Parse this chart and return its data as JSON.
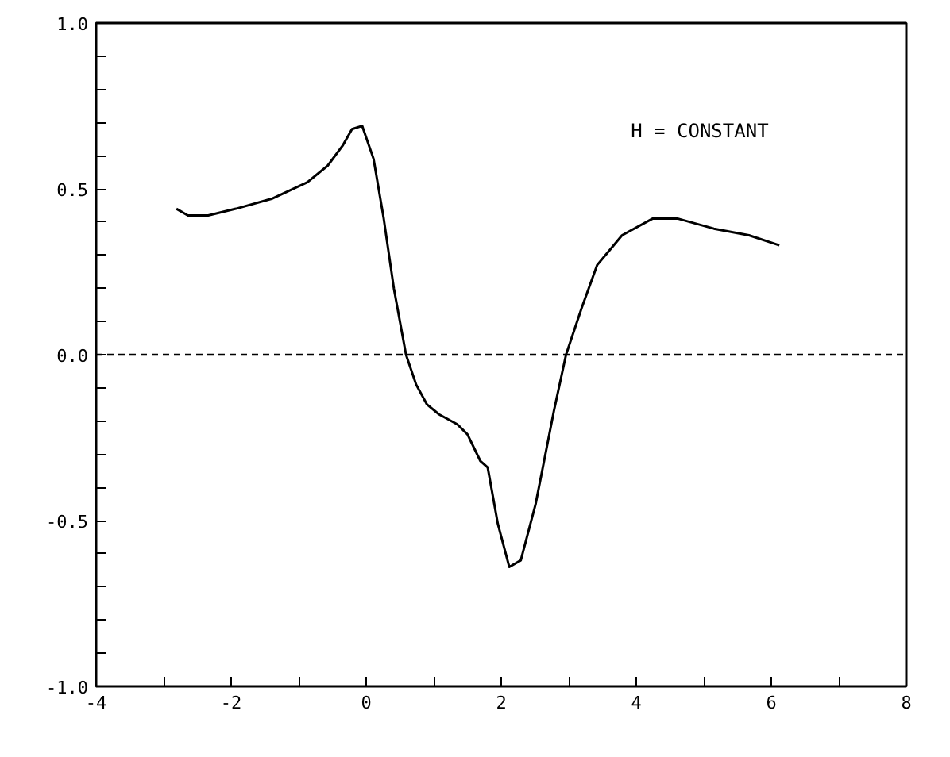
{
  "chart_data": {
    "type": "line",
    "x": [
      -2.81,
      -2.64,
      -2.34,
      -1.93,
      -1.4,
      -0.87,
      -0.57,
      -0.35,
      -0.21,
      -0.06,
      0.11,
      0.26,
      0.41,
      0.59,
      0.74,
      0.9,
      1.08,
      1.35,
      1.5,
      1.69,
      1.8,
      1.95,
      2.12,
      2.29,
      2.51,
      2.78,
      2.96,
      3.19,
      3.42,
      3.79,
      4.24,
      4.62,
      5.15,
      5.67,
      6.12
    ],
    "series": [
      {
        "color": "#000000",
        "values": [
          0.44,
          0.42,
          0.42,
          0.44,
          0.47,
          0.52,
          0.57,
          0.63,
          0.68,
          0.69,
          0.59,
          0.41,
          0.2,
          0.0,
          -0.09,
          -0.15,
          -0.18,
          -0.21,
          -0.24,
          -0.32,
          -0.34,
          -0.51,
          -0.64,
          -0.62,
          -0.45,
          -0.17,
          0.0,
          0.14,
          0.27,
          0.36,
          0.41,
          0.41,
          0.38,
          0.36,
          0.33
        ]
      }
    ],
    "xlim": [
      -4,
      8
    ],
    "ylim": [
      -1.0,
      1.0
    ],
    "xticks": [
      -4,
      {
        "value": -3,
        "label": null
      },
      -2,
      {
        "value": -1,
        "label": null
      },
      0,
      {
        "value": 1,
        "label": null
      },
      2,
      {
        "value": 3,
        "label": null
      },
      4,
      {
        "value": 5,
        "label": null
      },
      6,
      {
        "value": 7,
        "label": null
      },
      8
    ],
    "yticks": [
      {
        "value": -1.0,
        "label": "-1.0"
      },
      {
        "value": -0.9,
        "label": null
      },
      {
        "value": -0.8,
        "label": null
      },
      {
        "value": -0.7,
        "label": null
      },
      {
        "value": -0.6,
        "label": null
      },
      {
        "value": -0.5,
        "label": "-0.5"
      },
      {
        "value": -0.4,
        "label": null
      },
      {
        "value": -0.3,
        "label": null
      },
      {
        "value": -0.2,
        "label": null
      },
      {
        "value": -0.1,
        "label": null
      },
      {
        "value": 0.0,
        "label": "0.0"
      },
      {
        "value": 0.1,
        "label": null
      },
      {
        "value": 0.2,
        "label": null
      },
      {
        "value": 0.3,
        "label": null
      },
      {
        "value": 0.4,
        "label": null
      },
      {
        "value": 0.5,
        "label": "0.5"
      },
      {
        "value": 0.6,
        "label": null
      },
      {
        "value": 0.7,
        "label": null
      },
      {
        "value": 0.8,
        "label": null
      },
      {
        "value": 0.9,
        "label": null
      },
      {
        "value": 1.0,
        "label": "1.0"
      }
    ],
    "ref_lines": [
      {
        "axis": "y",
        "value": 0.0,
        "line_style": "dashed",
        "color": "#000000"
      }
    ],
    "annotations": [
      "H = CONSTANT"
    ],
    "grid": false,
    "line_style": "solid"
  }
}
